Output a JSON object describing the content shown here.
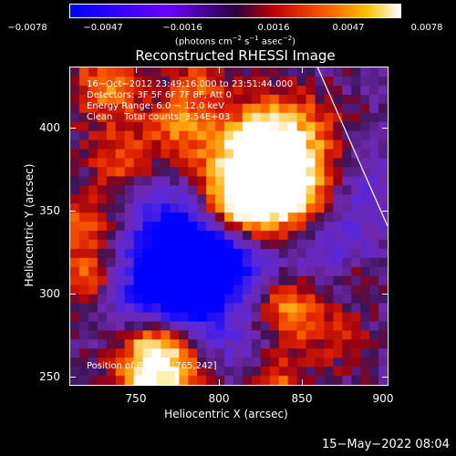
{
  "colorbar": {
    "tick_labels": [
      "−0.0078",
      "−0.0047",
      "−0.0016",
      "0.0016",
      "0.0047",
      "0.0078"
    ],
    "unit_label_parts": [
      "(photons cm",
      "−2",
      " s",
      "−1",
      " asec",
      "−2",
      ")"
    ]
  },
  "title": "Reconstructed RHESSI Image",
  "info": {
    "line1": "16−Oct−2012 23:49:16.000 to 23:51:44.000",
    "line2": "Detectors: 3F 5F 6F 7F 8F, Att 0",
    "line3": "Energy Range: 6.0 − 12.0 keV",
    "line4": "Clean    Total counts: 3.54E+03"
  },
  "peak_label": "Position of Peak = [765,242]",
  "xaxis": {
    "label": "Heliocentric X (arcsec)",
    "ticks": [
      "750",
      "800",
      "850",
      "900"
    ]
  },
  "yaxis": {
    "label": "Heliocentric Y (arcsec)",
    "ticks": [
      "400",
      "350",
      "300",
      "250"
    ]
  },
  "datestamp": "15−May−2022 08:04",
  "colors": {
    "background": "#000000",
    "limb_line": "#ffffff"
  }
}
